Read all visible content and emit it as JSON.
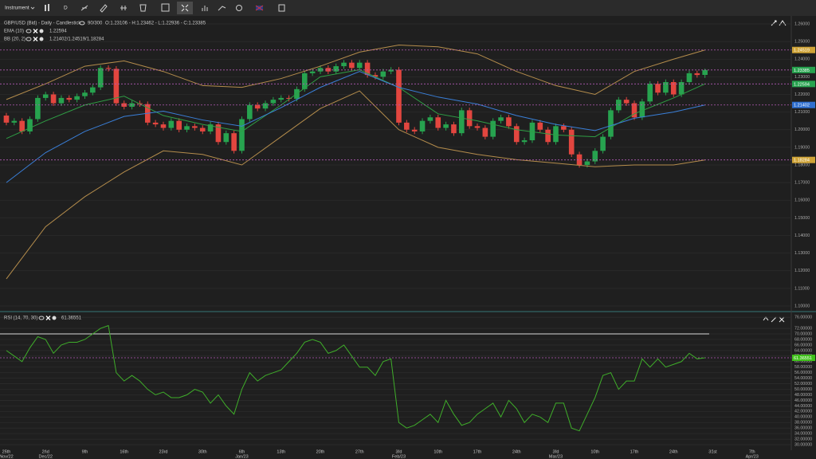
{
  "toolbar": {
    "instrument": "Instrument",
    "timeframe": "D"
  },
  "chart_data": [
    {
      "type": "candlestick",
      "title": "GBP/USD (Bid) - Daily - Candlestick",
      "bars_info": "90/300",
      "ohlc_text": "O:1.23106 - H:1.23462 - L:1.22936 - C:1.23385",
      "up_color": "#27a34f",
      "down_color": "#e2463f",
      "open": [
        1.208,
        1.204,
        1.205,
        1.199,
        1.206,
        1.218,
        1.22,
        1.215,
        1.218,
        1.217,
        1.219,
        1.221,
        1.224,
        1.235,
        1.2345,
        1.215,
        1.213,
        1.215,
        1.2145,
        1.204,
        1.203,
        1.201,
        1.205,
        1.2,
        1.202,
        1.201,
        1.199,
        1.203,
        1.193,
        1.198,
        1.188,
        1.206,
        1.214,
        1.212,
        1.215,
        1.217,
        1.218,
        1.2175,
        1.223,
        1.232,
        1.233,
        1.235,
        1.233,
        1.236,
        1.238,
        1.235,
        1.238,
        1.231,
        1.23,
        1.233,
        1.234,
        1.204,
        1.2,
        1.199,
        1.205,
        1.207,
        1.201,
        1.203,
        1.198,
        1.211,
        1.202,
        1.201,
        1.196,
        1.205,
        1.207,
        1.202,
        1.193,
        1.194,
        1.204,
        1.2,
        1.193,
        1.202,
        1.2,
        1.186,
        1.18,
        1.182,
        1.188,
        1.196,
        1.211,
        1.217,
        1.215,
        1.207,
        1.216,
        1.226,
        1.221,
        1.227,
        1.22,
        1.227,
        1.232,
        1.23106
      ],
      "high": [
        1.2095,
        1.2065,
        1.2065,
        1.2075,
        1.2195,
        1.2215,
        1.2215,
        1.2195,
        1.2195,
        1.2205,
        1.2225,
        1.2255,
        1.2365,
        1.2365,
        1.236,
        1.2165,
        1.2165,
        1.2165,
        1.216,
        1.2055,
        1.2045,
        1.2065,
        1.2065,
        1.2035,
        1.2035,
        1.2025,
        1.2045,
        1.2045,
        1.1995,
        1.1995,
        1.2075,
        1.2155,
        1.2155,
        1.2165,
        1.2185,
        1.2195,
        1.2195,
        1.2245,
        1.2335,
        1.2345,
        1.2365,
        1.2365,
        1.2375,
        1.2395,
        1.2395,
        1.2395,
        1.2395,
        1.2325,
        1.2345,
        1.2355,
        1.2355,
        1.2055,
        1.2015,
        1.2065,
        1.2085,
        1.2085,
        1.2045,
        1.2045,
        1.2125,
        1.2125,
        1.2035,
        1.2025,
        1.2065,
        1.2085,
        1.2085,
        1.2035,
        1.1955,
        1.2055,
        1.2055,
        1.2015,
        1.2035,
        1.2035,
        1.2015,
        1.1875,
        1.1835,
        1.1895,
        1.1975,
        1.2125,
        1.2185,
        1.2185,
        1.2165,
        1.2175,
        1.2275,
        1.2275,
        1.2285,
        1.2285,
        1.2285,
        1.2335,
        1.2335,
        1.23462
      ],
      "low": [
        1.2025,
        1.2025,
        1.1975,
        1.1975,
        1.2045,
        1.2165,
        1.2135,
        1.2135,
        1.2155,
        1.2155,
        1.2175,
        1.2195,
        1.2225,
        1.233,
        1.2135,
        1.2115,
        1.2115,
        1.213,
        1.2025,
        1.2015,
        1.1995,
        1.1995,
        1.1985,
        1.1985,
        1.1995,
        1.1975,
        1.1975,
        1.1915,
        1.1915,
        1.1865,
        1.1865,
        1.2045,
        1.2105,
        1.2105,
        1.2135,
        1.2155,
        1.216,
        1.216,
        1.2215,
        1.2305,
        1.2315,
        1.2315,
        1.2315,
        1.2345,
        1.2335,
        1.2335,
        1.2295,
        1.2285,
        1.2285,
        1.2315,
        1.2025,
        1.1985,
        1.1975,
        1.1975,
        1.2035,
        1.1995,
        1.1995,
        1.1965,
        1.1965,
        1.2005,
        1.1995,
        1.1945,
        1.1945,
        1.2035,
        1.2005,
        1.1915,
        1.1915,
        1.1925,
        1.1985,
        1.1915,
        1.1915,
        1.1985,
        1.1845,
        1.1785,
        1.1785,
        1.1805,
        1.1865,
        1.1945,
        1.2095,
        1.2135,
        1.2055,
        1.2055,
        1.2145,
        1.2195,
        1.2195,
        1.2185,
        1.2185,
        1.2255,
        1.2295,
        1.22936
      ],
      "close": [
        1.204,
        1.205,
        1.199,
        1.206,
        1.218,
        1.22,
        1.215,
        1.218,
        1.217,
        1.219,
        1.221,
        1.224,
        1.235,
        1.2345,
        1.215,
        1.213,
        1.215,
        1.2145,
        1.204,
        1.203,
        1.201,
        1.205,
        1.2,
        1.202,
        1.201,
        1.199,
        1.203,
        1.193,
        1.198,
        1.188,
        1.206,
        1.214,
        1.212,
        1.215,
        1.217,
        1.218,
        1.2175,
        1.223,
        1.232,
        1.233,
        1.235,
        1.233,
        1.236,
        1.238,
        1.235,
        1.238,
        1.231,
        1.23,
        1.233,
        1.234,
        1.204,
        1.2,
        1.199,
        1.205,
        1.207,
        1.201,
        1.203,
        1.198,
        1.211,
        1.202,
        1.201,
        1.196,
        1.205,
        1.207,
        1.202,
        1.193,
        1.194,
        1.204,
        1.2,
        1.193,
        1.202,
        1.2,
        1.186,
        1.18,
        1.182,
        1.188,
        1.196,
        1.211,
        1.217,
        1.215,
        1.207,
        1.216,
        1.226,
        1.221,
        1.227,
        1.22,
        1.227,
        1.232,
        1.231,
        1.23385
      ],
      "line_x": [
        0,
        5,
        10,
        15,
        20,
        25,
        30,
        35,
        40,
        45,
        50,
        55,
        60,
        65,
        70,
        75,
        80,
        85,
        89
      ],
      "series": [
        {
          "name": "EMA (10)",
          "value_label": "1.22594",
          "color": "#2f9e45",
          "values": [
            1.195,
            1.205,
            1.214,
            1.219,
            1.208,
            1.203,
            1.199,
            1.214,
            1.23,
            1.234,
            1.224,
            1.209,
            1.205,
            1.2,
            1.197,
            1.196,
            1.209,
            1.218,
            1.22594
          ]
        },
        {
          "name": "BB (20, 2)",
          "value_label": "1.21402/1.24519/1.18284",
          "color": "#3a7fd8",
          "band_color": "#b58d4c",
          "values": [
            1.17,
            1.187,
            1.199,
            1.2075,
            1.2105,
            1.2055,
            1.202,
            1.2125,
            1.224,
            1.233,
            1.224,
            1.2185,
            1.2145,
            1.208,
            1.203,
            1.1995,
            1.2065,
            1.21,
            1.21402
          ],
          "upper": [
            1.2171,
            1.226,
            1.236,
            1.239,
            1.233,
            1.225,
            1.224,
            1.229,
            1.236,
            1.244,
            1.248,
            1.247,
            1.243,
            1.233,
            1.225,
            1.22,
            1.233,
            1.24,
            1.24519
          ],
          "lower": [
            1.1154,
            1.145,
            1.162,
            1.176,
            1.188,
            1.186,
            1.18,
            1.196,
            1.212,
            1.222,
            1.2,
            1.19,
            1.186,
            1.183,
            1.181,
            1.179,
            1.18,
            1.18,
            1.18284
          ]
        }
      ],
      "price_tags": [
        {
          "value": 1.24519,
          "color": "#d0a437"
        },
        {
          "value": 1.23385,
          "color": "#27a34f"
        },
        {
          "value": 1.22594,
          "color": "#27a34f"
        },
        {
          "value": 1.21402,
          "color": "#2f6fd0"
        },
        {
          "value": 1.18284,
          "color": "#d0a437"
        }
      ],
      "tag_line_color": "#b25ab5",
      "xlim": [
        -0.81,
        100
      ],
      "ylim": [
        1.0973,
        1.2636
      ],
      "yticks": [
        {
          "value": 1.1,
          "label": "1.10000"
        },
        {
          "value": 1.11,
          "label": "1.11000"
        },
        {
          "value": 1.12,
          "label": "1.12000"
        },
        {
          "value": 1.13,
          "label": "1.13000"
        },
        {
          "value": 1.14,
          "label": "1.14000"
        },
        {
          "value": 1.15,
          "label": "1.15000"
        },
        {
          "value": 1.16,
          "label": "1.16000"
        },
        {
          "value": 1.17,
          "label": "1.17000"
        },
        {
          "value": 1.18,
          "label": "1.18000"
        },
        {
          "value": 1.19,
          "label": "1.19000"
        },
        {
          "value": 1.2,
          "label": "1.20000"
        },
        {
          "value": 1.21,
          "label": "1.21000"
        },
        {
          "value": 1.22,
          "label": "1.22000"
        },
        {
          "value": 1.23,
          "label": "1.23000"
        },
        {
          "value": 1.24,
          "label": "1.24000"
        },
        {
          "value": 1.25,
          "label": "1.25000"
        },
        {
          "value": 1.26,
          "label": "1.26000"
        }
      ],
      "grid": true
    },
    {
      "type": "line",
      "title": "RSI (14, 70, 30)",
      "value_label": "61.36551",
      "color": "#3fae2a",
      "values": [
        64,
        62,
        60,
        65,
        69,
        68,
        63,
        66,
        67,
        67,
        68,
        70,
        72,
        73,
        56,
        53,
        55,
        53,
        50,
        48,
        49,
        47,
        47,
        48,
        50,
        49,
        45,
        48,
        44,
        41,
        50,
        56,
        53,
        55,
        56,
        57,
        60,
        63,
        67,
        68,
        67,
        63,
        64,
        66,
        62,
        58,
        58,
        55,
        60,
        61,
        38,
        36,
        37,
        39,
        41,
        38,
        46,
        41,
        37,
        38,
        41,
        43,
        45,
        40,
        46,
        43,
        38,
        41,
        40,
        38,
        45,
        45,
        36,
        35,
        41,
        47,
        55,
        56,
        50,
        53,
        53,
        61,
        58,
        61,
        58,
        59,
        60,
        63,
        61,
        61.36551
      ],
      "levels": [
        70
      ],
      "level_color": "#d8d8d8",
      "tag": {
        "value": 61.36551,
        "color": "#3fc21a"
      },
      "xlim": [
        -0.81,
        100
      ],
      "ylim": [
        28,
        77.2
      ],
      "yticks": [
        {
          "value": 30,
          "label": "30.00000"
        },
        {
          "value": 32,
          "label": "32.00000"
        },
        {
          "value": 34,
          "label": "34.00000"
        },
        {
          "value": 36,
          "label": "36.00000"
        },
        {
          "value": 38,
          "label": "38.00000"
        },
        {
          "value": 40,
          "label": "40.00000"
        },
        {
          "value": 42,
          "label": "42.00000"
        },
        {
          "value": 44,
          "label": "44.00000"
        },
        {
          "value": 46,
          "label": "46.00000"
        },
        {
          "value": 48,
          "label": "48.00000"
        },
        {
          "value": 50,
          "label": "50.00000"
        },
        {
          "value": 52,
          "label": "52.00000"
        },
        {
          "value": 54,
          "label": "54.00000"
        },
        {
          "value": 56,
          "label": "56.00000"
        },
        {
          "value": 58,
          "label": "58.00000"
        },
        {
          "value": 60,
          "label": "60.00000"
        },
        {
          "value": 62,
          "label": "62.00000"
        },
        {
          "value": 64,
          "label": "64.00000"
        },
        {
          "value": 66,
          "label": "66.00000"
        },
        {
          "value": 68,
          "label": "68.00000"
        },
        {
          "value": 70,
          "label": "70.00000"
        },
        {
          "value": 72,
          "label": "72.00000"
        },
        {
          "value": 76,
          "label": "76.00000"
        }
      ],
      "xticks": [
        {
          "value": 0,
          "label": "25th",
          "sub": "Nov/22"
        },
        {
          "value": 5,
          "label": "2nd",
          "sub": "Dec/22"
        },
        {
          "value": 10,
          "label": "9th"
        },
        {
          "value": 15,
          "label": "16th"
        },
        {
          "value": 20,
          "label": "23rd"
        },
        {
          "value": 25,
          "label": "30th"
        },
        {
          "value": 30,
          "label": "6th",
          "sub": "Jan/23"
        },
        {
          "value": 35,
          "label": "13th"
        },
        {
          "value": 40,
          "label": "20th"
        },
        {
          "value": 45,
          "label": "27th"
        },
        {
          "value": 50,
          "label": "3rd",
          "sub": "Feb/23"
        },
        {
          "value": 55,
          "label": "10th"
        },
        {
          "value": 60,
          "label": "17th"
        },
        {
          "value": 65,
          "label": "24th"
        },
        {
          "value": 70,
          "label": "3rd",
          "sub": "Mar/23"
        },
        {
          "value": 75,
          "label": "10th"
        },
        {
          "value": 80,
          "label": "17th"
        },
        {
          "value": 85,
          "label": "24th"
        },
        {
          "value": 90,
          "label": "31st"
        },
        {
          "value": 95,
          "label": "7th",
          "sub": "Apr/23"
        }
      ],
      "grid": true
    }
  ]
}
